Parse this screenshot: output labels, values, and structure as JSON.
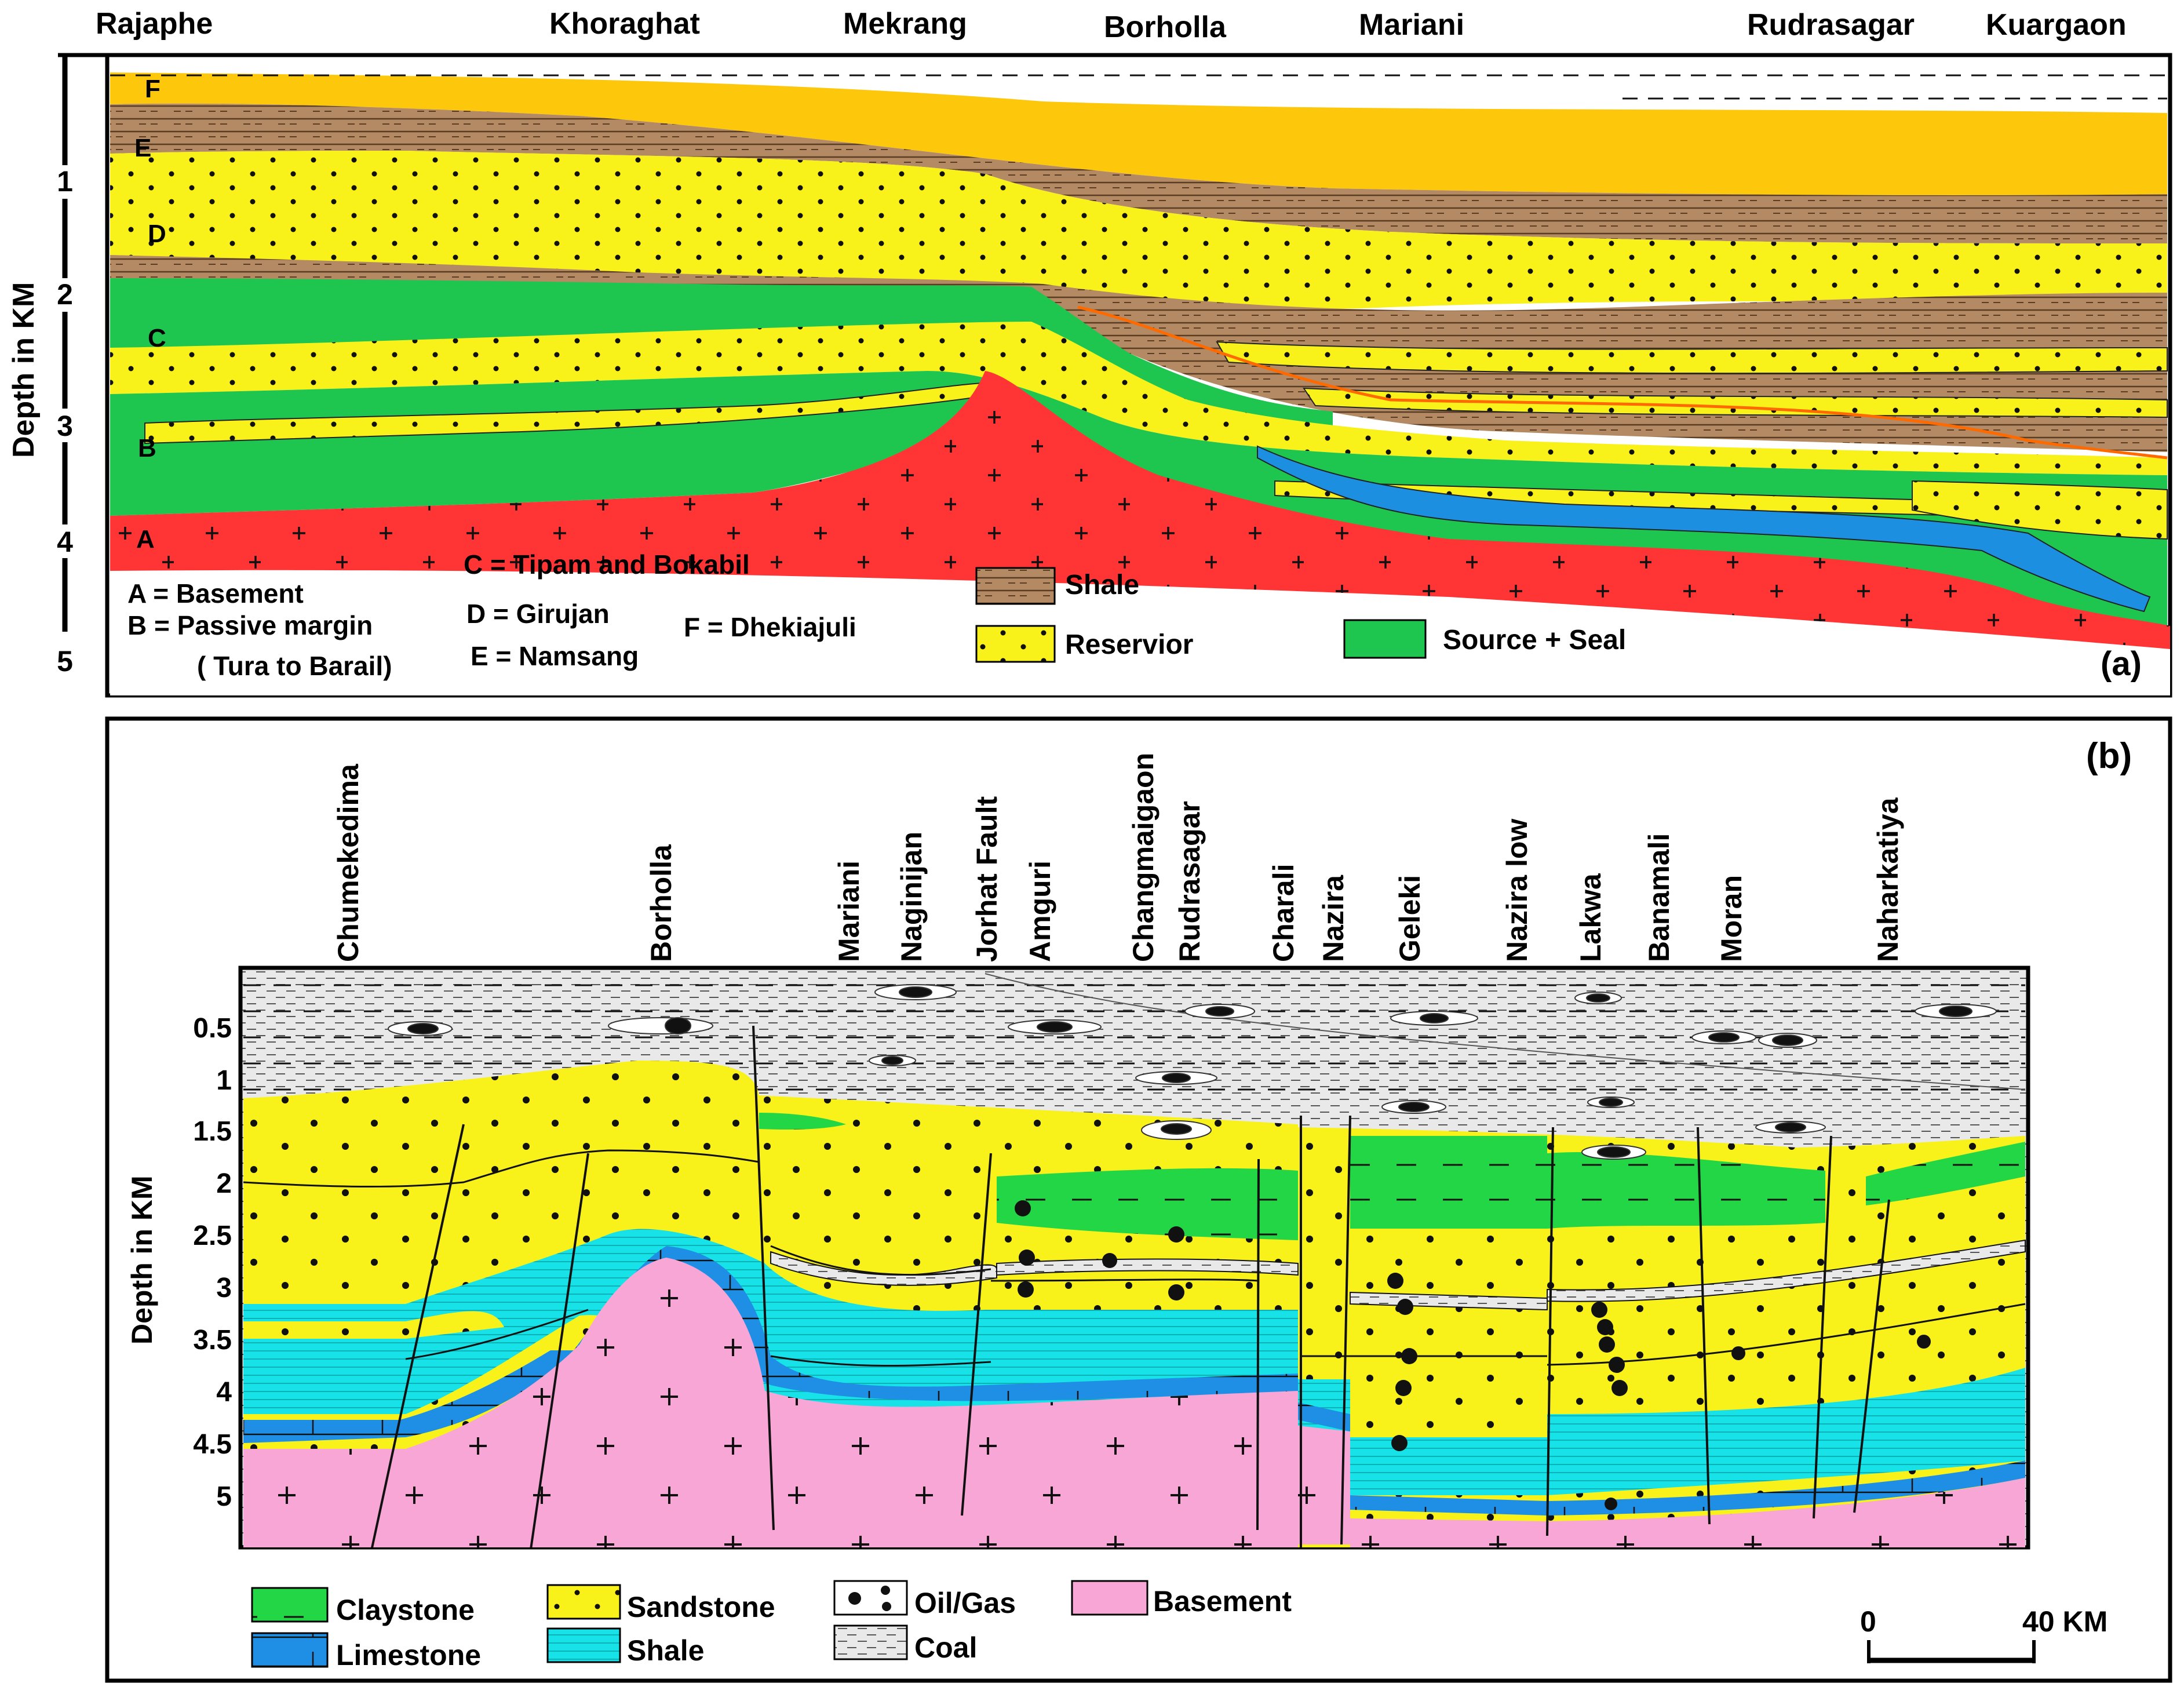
{
  "panel_a": {
    "tag": "(a)",
    "top_locations": [
      "Rajaphe",
      "Khoraghat",
      "Mekrang",
      "Borholla",
      "Mariani",
      "Rudrasagar",
      "Kuargaon"
    ],
    "depth_axis_title": "Depth in KM",
    "depth_ticks": [
      "1",
      "2",
      "3",
      "4",
      "5"
    ],
    "unit_letters": [
      "F",
      "E",
      "D",
      "C",
      "B",
      "A"
    ],
    "unit_key": {
      "a": "A = Basement",
      "b1": "B = Passive margin",
      "b2": "( Tura to Barail)",
      "c": "C = Tipam and Bokabil",
      "d": "D = Girujan",
      "e": "E = Namsang",
      "f": "F = Dhekiajuli"
    },
    "legend": {
      "shale": "Shale",
      "reservoir": "Reservior",
      "source_seal": "Source + Seal"
    }
  },
  "panel_b": {
    "tag": "(b)",
    "locations": [
      "Chumekedima",
      "Borholla",
      "Mariani",
      "Naginijan",
      "Jorhat Fault",
      "Amguri",
      "Changmaigaon",
      "Rudrasagar",
      "Charali",
      "Nazira",
      "Geleki",
      "Nazira low",
      "Lakwa",
      "Banamali",
      "Moran",
      "Naharkatiya"
    ],
    "depth_axis_title": "Depth in KM",
    "depth_ticks": [
      "0.5",
      "1",
      "1.5",
      "2",
      "2.5",
      "3",
      "3.5",
      "4",
      "4.5",
      "5"
    ],
    "legend": {
      "claystone": "Claystone",
      "limestone": "Limestone",
      "sandstone": "Sandstone",
      "shale": "Shale",
      "oilgas": "Oil/Gas",
      "coal": "Coal",
      "basement": "Basement"
    },
    "scale": {
      "start": "0",
      "end": "40 KM"
    }
  },
  "colors": {
    "fm_f": "#fdc70c",
    "shale_brown": "#b38a63",
    "reservoir_yellow": "#f8f21a",
    "source_green": "#1ec64f",
    "basement_red": "#ff3434",
    "carbonate_blue": "#1c8fe0",
    "claystone_green": "#22d646",
    "limestone_blue": "#1f8fe6",
    "shale_cyan": "#16e2e7",
    "basement_pink": "#f7a6d6",
    "coal_gray": "#e9e9e9"
  }
}
